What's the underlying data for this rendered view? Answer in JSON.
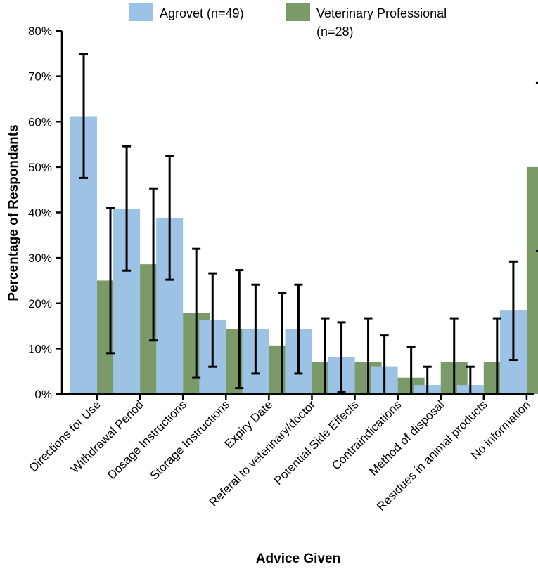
{
  "chart_data": {
    "type": "bar",
    "xlabel": "Advice Given",
    "ylabel": "Percentage of Respondants",
    "ylim": [
      0,
      80
    ],
    "yticks": [
      "0%",
      "10%",
      "20%",
      "30%",
      "40%",
      "50%",
      "60%",
      "70%",
      "80%"
    ],
    "yticks_values": [
      0,
      10,
      20,
      30,
      40,
      50,
      60,
      70,
      80
    ],
    "categories": [
      "Directions for Use",
      "Withdrawal Period",
      "Dosage Instructions",
      "Storage Instructions",
      "Expiry Date",
      "Referal to veterinary/doctor",
      "Potential Side Effects",
      "Contraindications",
      "Method of disposal",
      "Residues in animal products",
      "No information"
    ],
    "series": [
      {
        "name": "Agrovet (n=49)",
        "color": "#9cc3e6",
        "values": [
          61.2,
          40.8,
          38.8,
          16.3,
          14.3,
          14.3,
          8.2,
          6.1,
          2.0,
          2.0,
          18.4
        ],
        "err_low": [
          47.6,
          27.2,
          25.2,
          6.0,
          4.5,
          4.5,
          0.4,
          0,
          0,
          0,
          7.5
        ],
        "err_high": [
          74.9,
          54.6,
          52.4,
          26.6,
          24.1,
          24.1,
          15.8,
          12.9,
          6.0,
          6.0,
          29.2
        ]
      },
      {
        "name": "Veterinary Professional (n=28)",
        "color": "#7a9a68",
        "values": [
          25.0,
          28.6,
          17.9,
          14.3,
          10.7,
          7.1,
          7.1,
          3.6,
          7.1,
          7.1,
          50.0
        ],
        "err_low": [
          9.0,
          11.8,
          3.7,
          1.3,
          0,
          0,
          0,
          0,
          0,
          0,
          31.5
        ],
        "err_high": [
          41.0,
          45.3,
          32.0,
          27.3,
          22.2,
          16.7,
          16.7,
          10.4,
          16.7,
          16.7,
          68.5
        ]
      }
    ],
    "legend": {
      "position": "top",
      "labels": [
        "Agrovet (n=49)",
        "Veterinary Professional",
        "(n=28)"
      ]
    }
  }
}
